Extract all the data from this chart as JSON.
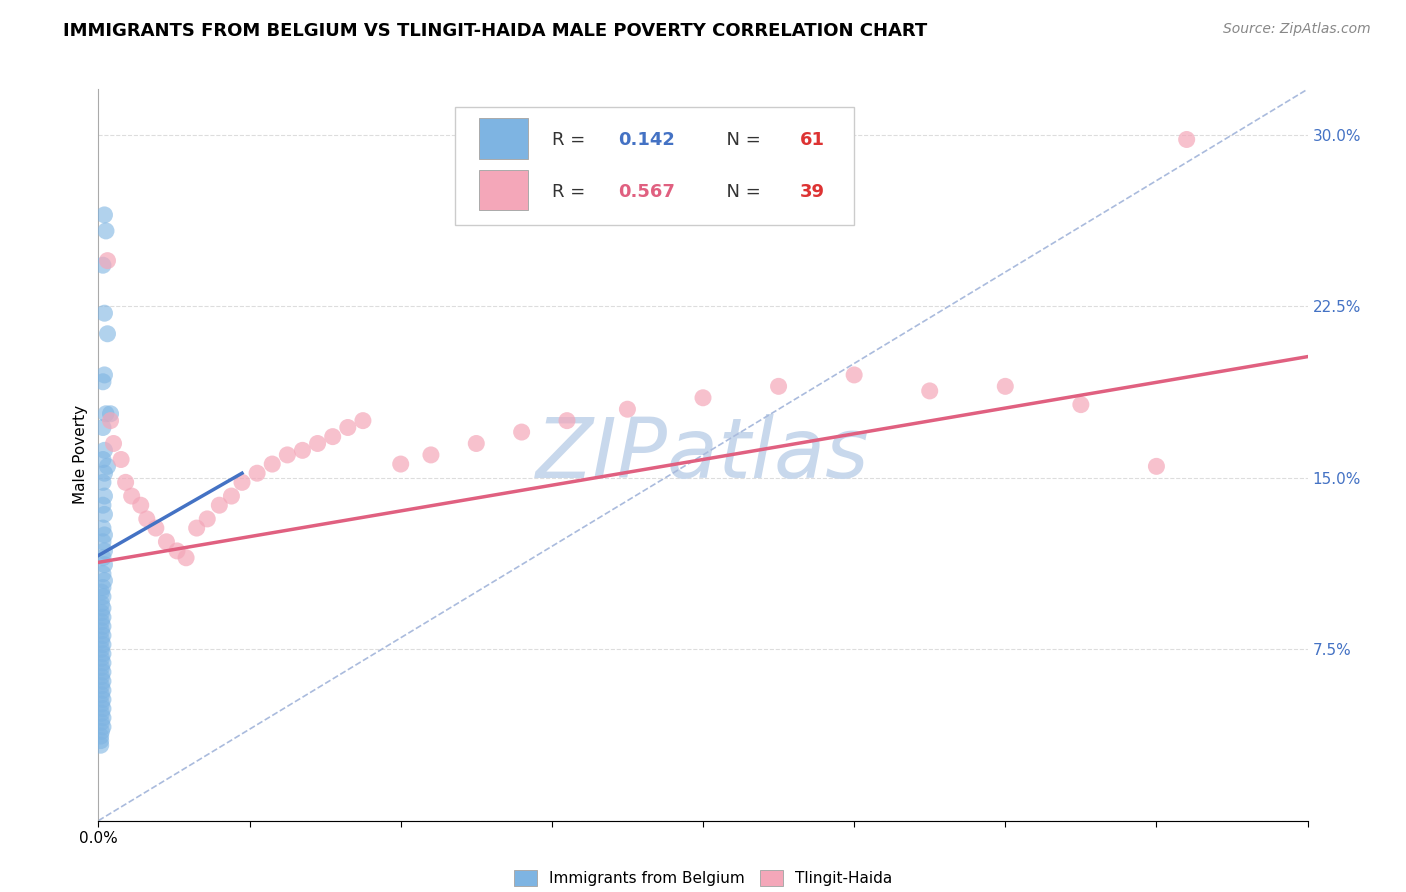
{
  "title": "IMMIGRANTS FROM BELGIUM VS TLINGIT-HAIDA MALE POVERTY CORRELATION CHART",
  "source": "Source: ZipAtlas.com",
  "ylabel": "Male Poverty",
  "watermark": "ZIPatlas",
  "xlim": [
    0.0,
    0.8
  ],
  "ylim": [
    0.0,
    0.32
  ],
  "xtick_positions": [
    0.0,
    0.1,
    0.2,
    0.3,
    0.4,
    0.5,
    0.6,
    0.7,
    0.8
  ],
  "xticklabels_show": {
    "0.0": "0.0%"
  },
  "ytick_positions": [
    0.0,
    0.075,
    0.15,
    0.225,
    0.3
  ],
  "blue_R": "0.142",
  "blue_N": "61",
  "pink_R": "0.567",
  "pink_N": "39",
  "blue_color": "#7EB4E2",
  "pink_color": "#F4A7B9",
  "blue_regression_color": "#4472C4",
  "pink_regression_color": "#E06080",
  "blue_label": "Immigrants from Belgium",
  "pink_label": "Tlingit-Haida",
  "blue_scatter_x": [
    0.004,
    0.005,
    0.003,
    0.004,
    0.006,
    0.003,
    0.004,
    0.005,
    0.003,
    0.004,
    0.003,
    0.004,
    0.003,
    0.004,
    0.003,
    0.004,
    0.003,
    0.004,
    0.003,
    0.004,
    0.003,
    0.004,
    0.003,
    0.004,
    0.003,
    0.002,
    0.003,
    0.002,
    0.003,
    0.002,
    0.003,
    0.002,
    0.003,
    0.002,
    0.003,
    0.002,
    0.003,
    0.002,
    0.003,
    0.002,
    0.003,
    0.002,
    0.003,
    0.002,
    0.003,
    0.002,
    0.003,
    0.002,
    0.003,
    0.002,
    0.003,
    0.002,
    0.003,
    0.002,
    0.003,
    0.002,
    0.0015,
    0.0015,
    0.0015,
    0.006,
    0.008
  ],
  "blue_scatter_y": [
    0.265,
    0.258,
    0.243,
    0.222,
    0.213,
    0.192,
    0.195,
    0.178,
    0.172,
    0.162,
    0.158,
    0.152,
    0.148,
    0.142,
    0.138,
    0.134,
    0.128,
    0.125,
    0.122,
    0.118,
    0.115,
    0.112,
    0.108,
    0.105,
    0.102,
    0.1,
    0.098,
    0.095,
    0.093,
    0.091,
    0.089,
    0.087,
    0.085,
    0.083,
    0.081,
    0.079,
    0.077,
    0.075,
    0.073,
    0.071,
    0.069,
    0.067,
    0.065,
    0.063,
    0.061,
    0.059,
    0.057,
    0.055,
    0.053,
    0.051,
    0.049,
    0.047,
    0.045,
    0.043,
    0.041,
    0.039,
    0.037,
    0.035,
    0.033,
    0.155,
    0.178
  ],
  "pink_scatter_x": [
    0.006,
    0.008,
    0.01,
    0.015,
    0.018,
    0.022,
    0.028,
    0.032,
    0.038,
    0.045,
    0.052,
    0.058,
    0.065,
    0.072,
    0.08,
    0.088,
    0.095,
    0.105,
    0.115,
    0.125,
    0.135,
    0.145,
    0.155,
    0.165,
    0.175,
    0.2,
    0.22,
    0.25,
    0.28,
    0.31,
    0.35,
    0.4,
    0.45,
    0.5,
    0.55,
    0.6,
    0.65,
    0.7,
    0.72
  ],
  "pink_scatter_y": [
    0.245,
    0.175,
    0.165,
    0.158,
    0.148,
    0.142,
    0.138,
    0.132,
    0.128,
    0.122,
    0.118,
    0.115,
    0.128,
    0.132,
    0.138,
    0.142,
    0.148,
    0.152,
    0.156,
    0.16,
    0.162,
    0.165,
    0.168,
    0.172,
    0.175,
    0.156,
    0.16,
    0.165,
    0.17,
    0.175,
    0.18,
    0.185,
    0.19,
    0.195,
    0.188,
    0.19,
    0.182,
    0.155,
    0.298
  ],
  "blue_line_x": [
    0.0,
    0.095
  ],
  "blue_line_y": [
    0.116,
    0.152
  ],
  "pink_line_x": [
    0.0,
    0.8
  ],
  "pink_line_y": [
    0.113,
    0.203
  ],
  "diag_line_color": "#AABBDD",
  "grid_color": "#DDDDDD",
  "grid_style": "--",
  "background_color": "#FFFFFF",
  "title_fontsize": 13,
  "axis_label_fontsize": 11,
  "tick_fontsize": 11,
  "watermark_color": "#C8D8EC",
  "watermark_fontsize": 60,
  "right_tick_color": "#4472C4"
}
